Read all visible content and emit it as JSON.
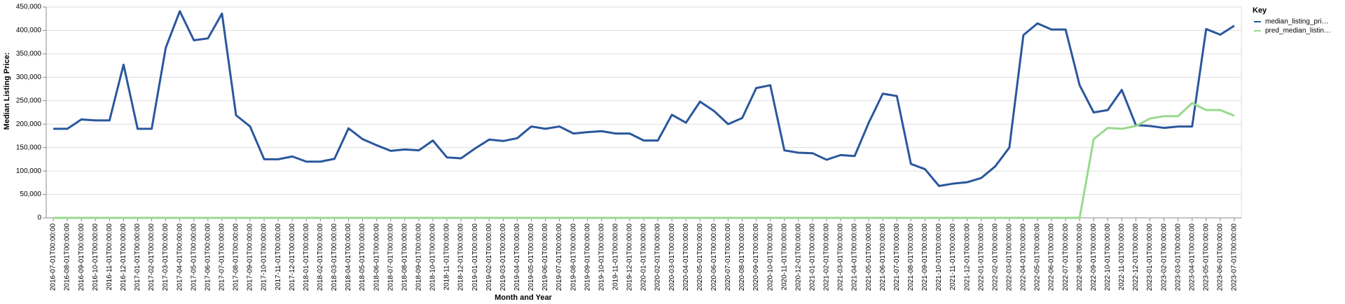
{
  "chart_data": {
    "type": "line",
    "y_label": "Median Listing Price:",
    "x_label": "Month and Year",
    "legend_title": "Key",
    "legend_position": "right",
    "grid": true,
    "ylim": [
      0,
      450000
    ],
    "yticks": [
      {
        "value": 0,
        "label": "0"
      },
      {
        "value": 50000,
        "label": "50,000"
      },
      {
        "value": 100000,
        "label": "100,000"
      },
      {
        "value": 150000,
        "label": "150,000"
      },
      {
        "value": 200000,
        "label": "200,000"
      },
      {
        "value": 250000,
        "label": "250,000"
      },
      {
        "value": 300000,
        "label": "300,000"
      },
      {
        "value": 350000,
        "label": "350,000"
      },
      {
        "value": 400000,
        "label": "400,000"
      },
      {
        "value": 450000,
        "label": "450,000"
      }
    ],
    "categories": [
      "2016-07-01T00:00:00",
      "2016-08-01T00:00:00",
      "2016-09-01T00:00:00",
      "2016-10-01T00:00:00",
      "2016-11-01T00:00:00",
      "2016-12-01T00:00:00",
      "2017-01-01T00:00:00",
      "2017-02-01T00:00:00",
      "2017-03-01T00:00:00",
      "2017-04-01T00:00:00",
      "2017-05-01T00:00:00",
      "2017-06-01T00:00:00",
      "2017-07-01T00:00:00",
      "2017-08-01T00:00:00",
      "2017-09-01T00:00:00",
      "2017-10-01T00:00:00",
      "2017-11-01T00:00:00",
      "2017-12-01T00:00:00",
      "2018-01-01T00:00:00",
      "2018-02-01T00:00:00",
      "2018-03-01T00:00:00",
      "2018-04-01T00:00:00",
      "2018-05-01T00:00:00",
      "2018-06-01T00:00:00",
      "2018-07-01T00:00:00",
      "2018-08-01T00:00:00",
      "2018-09-01T00:00:00",
      "2018-10-01T00:00:00",
      "2018-11-01T00:00:00",
      "2018-12-01T00:00:00",
      "2019-01-01T00:00:00",
      "2019-02-01T00:00:00",
      "2019-03-01T00:00:00",
      "2019-04-01T00:00:00",
      "2019-05-01T00:00:00",
      "2019-06-01T00:00:00",
      "2019-07-01T00:00:00",
      "2019-08-01T00:00:00",
      "2019-09-01T00:00:00",
      "2019-10-01T00:00:00",
      "2019-11-01T00:00:00",
      "2019-12-01T00:00:00",
      "2020-01-01T00:00:00",
      "2020-02-01T00:00:00",
      "2020-03-01T00:00:00",
      "2020-04-01T00:00:00",
      "2020-05-01T00:00:00",
      "2020-06-01T00:00:00",
      "2020-07-01T00:00:00",
      "2020-08-01T00:00:00",
      "2020-09-01T00:00:00",
      "2020-10-01T00:00:00",
      "2020-11-01T00:00:00",
      "2020-12-01T00:00:00",
      "2021-01-01T00:00:00",
      "2021-02-01T00:00:00",
      "2021-03-01T00:00:00",
      "2021-04-01T00:00:00",
      "2021-05-01T00:00:00",
      "2021-06-01T00:00:00",
      "2021-07-01T00:00:00",
      "2021-08-01T00:00:00",
      "2021-09-01T00:00:00",
      "2021-10-01T00:00:00",
      "2021-11-01T00:00:00",
      "2021-12-01T00:00:00",
      "2022-01-01T00:00:00",
      "2022-02-01T00:00:00",
      "2022-03-01T00:00:00",
      "2022-04-01T00:00:00",
      "2022-05-01T00:00:00",
      "2022-06-01T00:00:00",
      "2022-07-01T00:00:00",
      "2022-08-01T00:00:00",
      "2022-09-01T00:00:00",
      "2022-10-01T00:00:00",
      "2022-11-01T00:00:00",
      "2022-12-01T00:00:00",
      "2023-01-01T00:00:00",
      "2023-02-01T00:00:00",
      "2023-03-01T00:00:00",
      "2023-04-01T00:00:00",
      "2023-05-01T00:00:00",
      "2023-06-01T00:00:00",
      "2023-07-01T00:00:00"
    ],
    "series": [
      {
        "name": "median_listing_pri…",
        "color": "#2a579d",
        "values": [
          190000,
          190000,
          210000,
          208000,
          208000,
          327000,
          190000,
          190000,
          363000,
          441000,
          379000,
          383000,
          436000,
          219000,
          195000,
          125000,
          125000,
          131000,
          120000,
          120000,
          126000,
          191000,
          168000,
          155000,
          143000,
          146000,
          144000,
          165000,
          129000,
          127000,
          148000,
          167000,
          164000,
          170000,
          195000,
          190000,
          195000,
          180000,
          183000,
          185000,
          180000,
          180000,
          165000,
          165000,
          220000,
          203000,
          248000,
          228000,
          200000,
          213000,
          277000,
          283000,
          144000,
          139000,
          138000,
          124000,
          134000,
          132000,
          203000,
          265000,
          260000,
          115000,
          104000,
          68000,
          73000,
          76000,
          85000,
          110000,
          150000,
          390000,
          415000,
          402000,
          402000,
          283000,
          225000,
          230000,
          273000,
          198000,
          196000,
          192000,
          195000,
          195000,
          403000,
          391000,
          410000
        ]
      },
      {
        "name": "pred_median_listin…",
        "color": "#98d98e",
        "values": [
          0,
          0,
          0,
          0,
          0,
          0,
          0,
          0,
          0,
          0,
          0,
          0,
          0,
          0,
          0,
          0,
          0,
          0,
          0,
          0,
          0,
          0,
          0,
          0,
          0,
          0,
          0,
          0,
          0,
          0,
          0,
          0,
          0,
          0,
          0,
          0,
          0,
          0,
          0,
          0,
          0,
          0,
          0,
          0,
          0,
          0,
          0,
          0,
          0,
          0,
          0,
          0,
          0,
          0,
          0,
          0,
          0,
          0,
          0,
          0,
          0,
          0,
          0,
          0,
          0,
          0,
          0,
          0,
          0,
          0,
          0,
          0,
          0,
          0,
          168000,
          192000,
          190000,
          196000,
          212000,
          217000,
          217000,
          245000,
          230000,
          230000,
          218000
        ]
      }
    ]
  }
}
